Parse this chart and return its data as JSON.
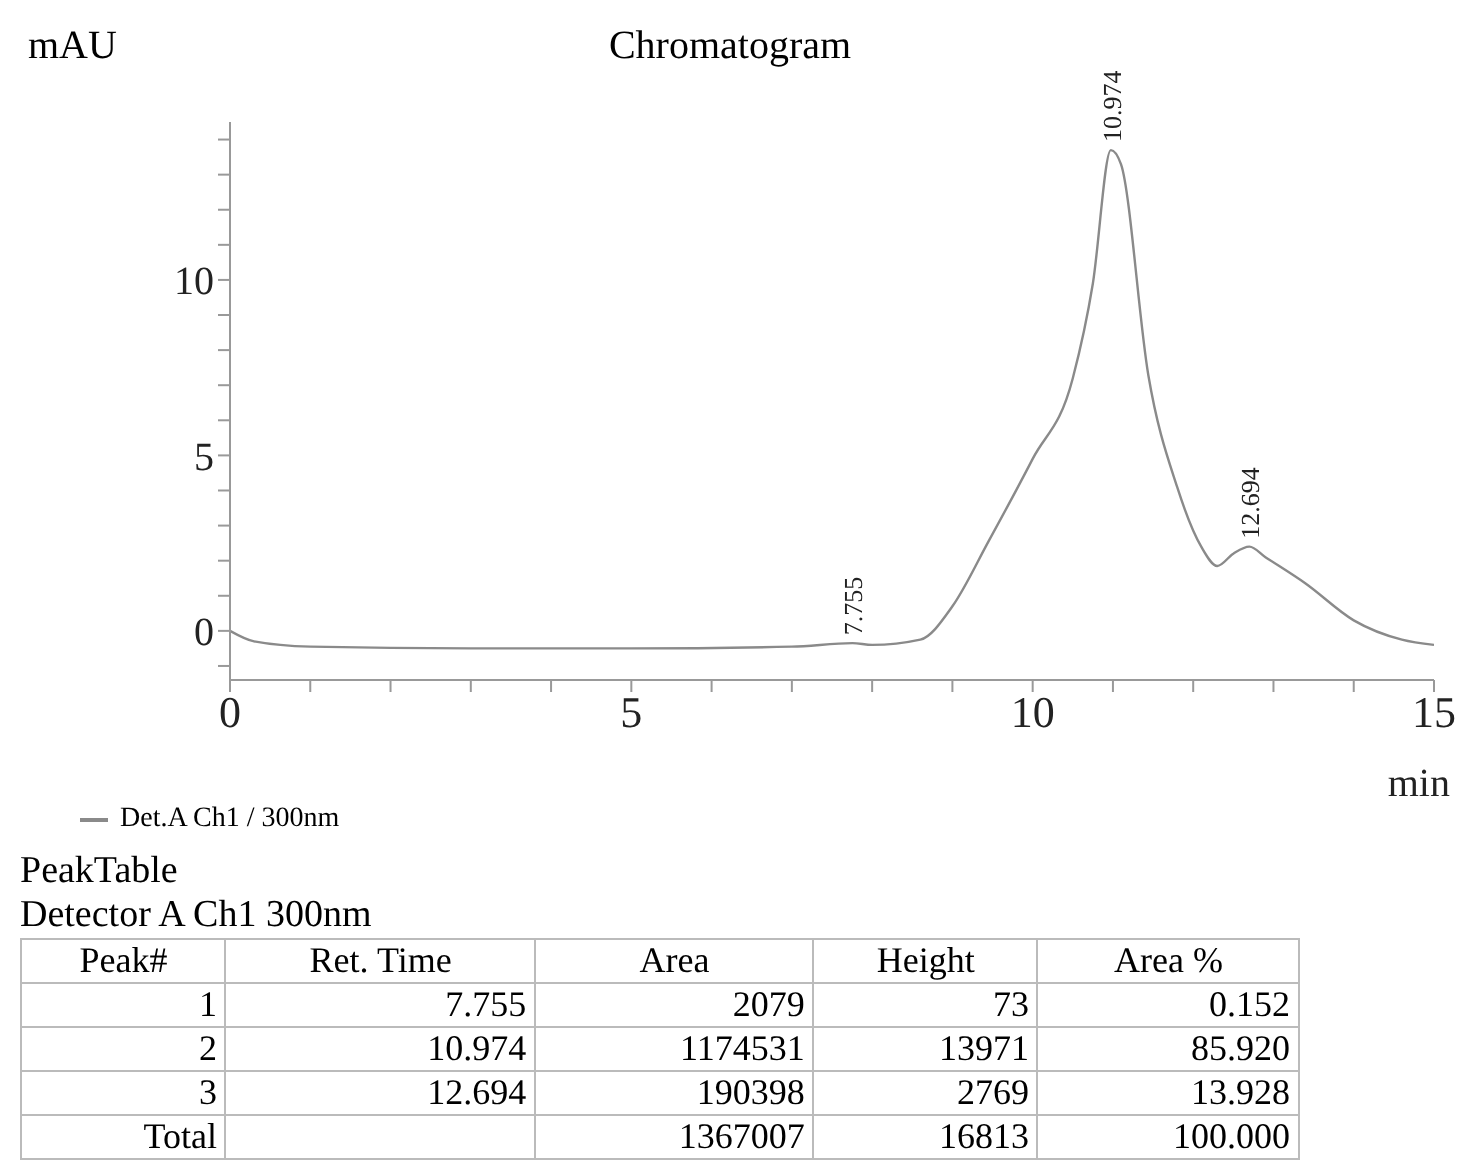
{
  "chart_data": [
    {
      "type": "line",
      "title": "Chromatogram",
      "xlabel": "min",
      "ylabel": "mAU",
      "xlim": [
        0,
        15
      ],
      "ylim": [
        -1.4,
        14.5
      ],
      "xticks": [
        0,
        {
          "value": 1,
          "label": null
        },
        {
          "value": 2,
          "label": null
        },
        {
          "value": 3,
          "label": null
        },
        {
          "value": 4,
          "label": null
        },
        5,
        {
          "value": 6,
          "label": null
        },
        {
          "value": 7,
          "label": null
        },
        {
          "value": 8,
          "label": null
        },
        {
          "value": 9,
          "label": null
        },
        10,
        {
          "value": 11,
          "label": null
        },
        {
          "value": 12,
          "label": null
        },
        {
          "value": 13,
          "label": null
        },
        {
          "value": 14,
          "label": null
        },
        15
      ],
      "yticks": [
        {
          "value": -1,
          "label": null
        },
        0,
        {
          "value": 1,
          "label": null
        },
        {
          "value": 2,
          "label": null
        },
        {
          "value": 3,
          "label": null
        },
        {
          "value": 4,
          "label": null
        },
        5,
        {
          "value": 6,
          "label": null
        },
        {
          "value": 7,
          "label": null
        },
        {
          "value": 8,
          "label": null
        },
        {
          "value": 9,
          "label": null
        },
        10,
        {
          "value": 11,
          "label": null
        },
        {
          "value": 12,
          "label": null
        },
        {
          "value": 13,
          "label": null
        },
        {
          "value": 14,
          "label": null
        }
      ],
      "legend": "bottom left",
      "marker": "none",
      "series": [
        {
          "name": "Det.A Ch1 / 300nm",
          "color": "#8a8a8a",
          "x": [
            0,
            0.3,
            1,
            3,
            5,
            7,
            7.755,
            8,
            8.6,
            9,
            9.45,
            10,
            10.5,
            10.75,
            10.974,
            11.1,
            11.44,
            11.8,
            12.1,
            12.3,
            12.5,
            12.7,
            12.9,
            13.4,
            14,
            14.6,
            15
          ],
          "values": [
            0,
            -0.3,
            -0.45,
            -0.5,
            -0.5,
            -0.45,
            -0.35,
            -0.4,
            -0.25,
            0.7,
            2.55,
            4.9,
            7.2,
            9.9,
            13.7,
            13.3,
            7.3,
            4.1,
            2.4,
            1.85,
            2.2,
            2.4,
            2.1,
            1.35,
            0.3,
            -0.25,
            -0.4
          ]
        }
      ],
      "annotations": [
        {
          "text": "7.755",
          "x": 7.755,
          "y": -0.35
        },
        {
          "text": "10.974",
          "x": 10.974,
          "y": 13.7
        },
        {
          "text": "12.694",
          "x": 12.694,
          "y": 2.4
        }
      ]
    },
    {
      "type": "other",
      "title": "PeakTable",
      "subtitle": "Detector A Ch1 300nm",
      "categories": [
        "Peak#",
        "Ret. Time",
        "Area",
        "Height",
        "Area %"
      ],
      "cell_labels": [
        [
          "1",
          "7.755",
          "2079",
          "73",
          "0.152"
        ],
        [
          "2",
          "10.974",
          "1174531",
          "13971",
          "85.920"
        ],
        [
          "3",
          "12.694",
          "190398",
          "2769",
          "13.928"
        ],
        [
          "Total",
          null,
          "1367007",
          "16813",
          "100.000"
        ]
      ]
    }
  ]
}
